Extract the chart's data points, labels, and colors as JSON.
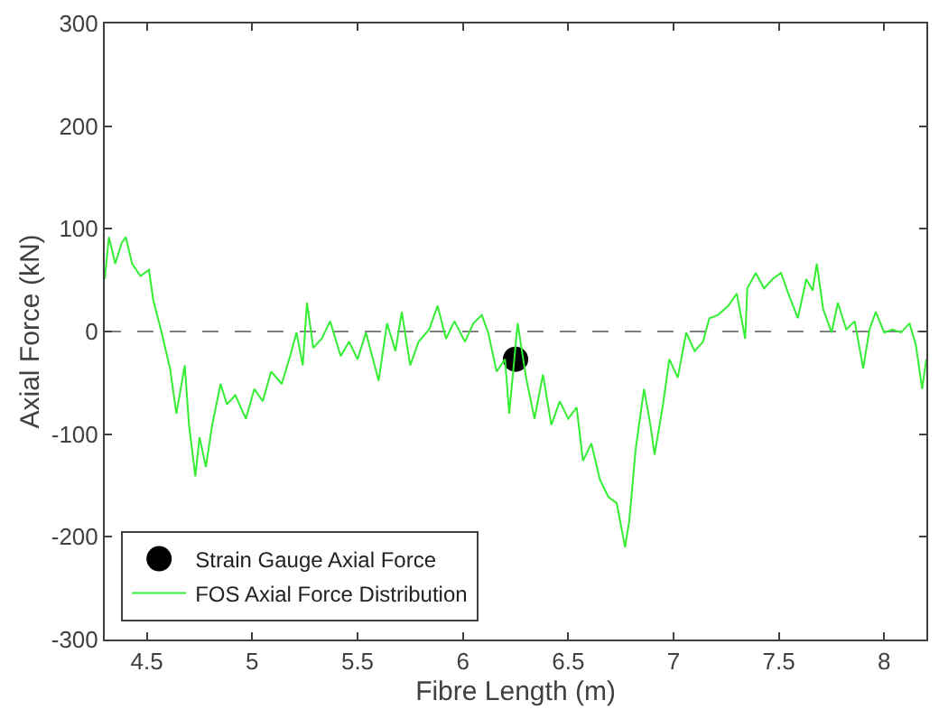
{
  "chart_data": {
    "type": "line",
    "xlabel": "Fibre Length (m)",
    "ylabel": "Axial Force (kN)",
    "xlim": [
      4.3,
      8.2
    ],
    "xticks": [
      4.5,
      5,
      5.5,
      6,
      6.5,
      7,
      7.5,
      8
    ],
    "ylim": [
      -300,
      300
    ],
    "yticks": [
      -300,
      -200,
      -100,
      0,
      100,
      200,
      300
    ],
    "grid": false,
    "legend": "bottom left",
    "ref_lines": [
      {
        "axis": "y",
        "value": 0,
        "label": null,
        "color": "#808080",
        "line_style": "dashed"
      }
    ],
    "series": [
      {
        "name": "Strain Gauge Axial Force",
        "type": "scatter",
        "marker": "circle",
        "color": "#000000",
        "x": [
          6.25
        ],
        "values": [
          -27
        ]
      },
      {
        "name": "FOS Axial Force Distribution",
        "marker": "none",
        "line_style": "solid",
        "color": "#33ee33",
        "x": [
          4.3,
          4.32,
          4.35,
          4.38,
          4.4,
          4.43,
          4.47,
          4.51,
          4.53,
          4.57,
          4.61,
          4.64,
          4.68,
          4.7,
          4.73,
          4.75,
          4.78,
          4.81,
          4.85,
          4.88,
          4.92,
          4.97,
          5.01,
          5.05,
          5.09,
          5.14,
          5.18,
          5.21,
          5.24,
          5.26,
          5.29,
          5.33,
          5.37,
          5.42,
          5.46,
          5.5,
          5.54,
          5.6,
          5.64,
          5.68,
          5.71,
          5.75,
          5.79,
          5.84,
          5.88,
          5.92,
          5.96,
          6.01,
          6.05,
          6.09,
          6.12,
          6.16,
          6.2,
          6.22,
          6.26,
          6.3,
          6.34,
          6.38,
          6.42,
          6.46,
          6.5,
          6.54,
          6.57,
          6.61,
          6.65,
          6.69,
          6.73,
          6.77,
          6.79,
          6.82,
          6.86,
          6.89,
          6.91,
          6.95,
          6.98,
          7.02,
          7.06,
          7.1,
          7.14,
          7.17,
          7.21,
          7.26,
          7.3,
          7.34,
          7.35,
          7.39,
          7.43,
          7.47,
          7.51,
          7.55,
          7.59,
          7.63,
          7.66,
          7.68,
          7.71,
          7.75,
          7.78,
          7.82,
          7.86,
          7.9,
          7.93,
          7.96,
          8.0,
          8.04,
          8.08,
          8.12,
          8.15,
          8.18,
          8.2
        ],
        "values": [
          51,
          92,
          66,
          86,
          92,
          66,
          54,
          60,
          31,
          -1,
          -36,
          -80,
          -33,
          -91,
          -141,
          -103,
          -132,
          -91,
          -51,
          -71,
          -62,
          -85,
          -56,
          -68,
          -39,
          -51,
          -24,
          -1,
          -33,
          28,
          -16,
          -7,
          10,
          -24,
          -10,
          -27,
          -1,
          -48,
          8,
          -19,
          19,
          -33,
          -10,
          2,
          25,
          -7,
          10,
          -10,
          8,
          16,
          -1,
          -39,
          -27,
          -80,
          8,
          -45,
          -85,
          -42,
          -91,
          -68,
          -85,
          -74,
          -126,
          -109,
          -144,
          -161,
          -167,
          -210,
          -184,
          -115,
          -56,
          -91,
          -120,
          -71,
          -27,
          -45,
          -1,
          -19,
          -10,
          13,
          16,
          25,
          37,
          -7,
          42,
          57,
          42,
          51,
          57,
          34,
          13,
          51,
          40,
          66,
          22,
          -1,
          28,
          2,
          10,
          -36,
          2,
          19,
          -1,
          2,
          -1,
          8,
          -13,
          -56,
          -27
        ]
      }
    ]
  }
}
